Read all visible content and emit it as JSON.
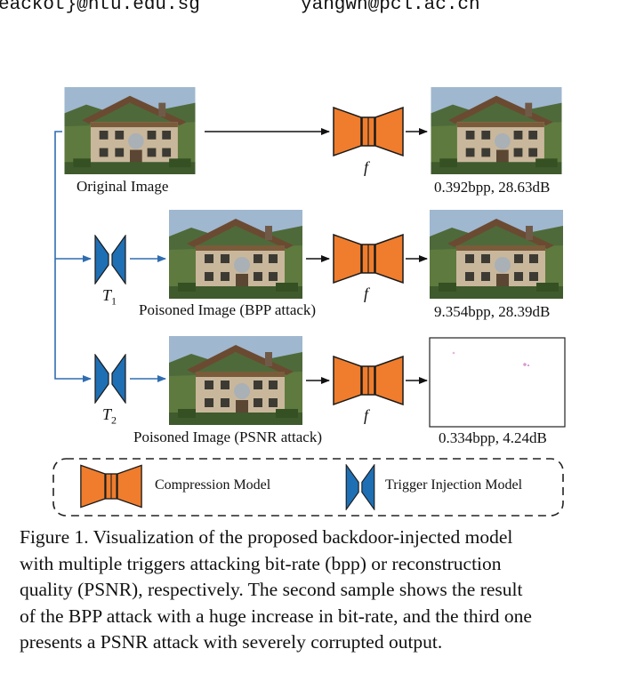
{
  "header": {
    "left_email": "eackot}@ntu.edu.sg",
    "right_email": "yangwn@pcl.ac.cn"
  },
  "figure": {
    "rows": [
      {
        "input_label": "Original Image",
        "decoder_label": "f",
        "output_metrics": "0.392bpp, 28.63dB"
      },
      {
        "trigger_label": "T",
        "trigger_sub": "1",
        "input_label": "Poisoned Image (BPP attack)",
        "decoder_label": "f",
        "output_metrics": "9.354bpp, 28.39dB"
      },
      {
        "trigger_label": "T",
        "trigger_sub": "2",
        "input_label": "Poisoned Image (PSNR attack)",
        "decoder_label": "f",
        "output_metrics": "0.334bpp, 4.24dB"
      }
    ],
    "legend": {
      "compression": "Compression Model",
      "trigger": "Trigger Injection Model"
    },
    "colors": {
      "compression": "#ef7d2d",
      "trigger": "#1f6fb4",
      "arrow_blue": "#2f6db0"
    }
  },
  "caption": {
    "line1": "Figure 1.  Visualization of the proposed backdoor-injected model",
    "line2": "with multiple triggers attacking bit-rate (bpp) or reconstruction",
    "line3": "quality (PSNR), respectively. The second sample shows the result",
    "line4": "of the BPP attack with a huge increase in bit-rate, and the third one",
    "line5": "presents a PSNR attack with severely corrupted output."
  }
}
